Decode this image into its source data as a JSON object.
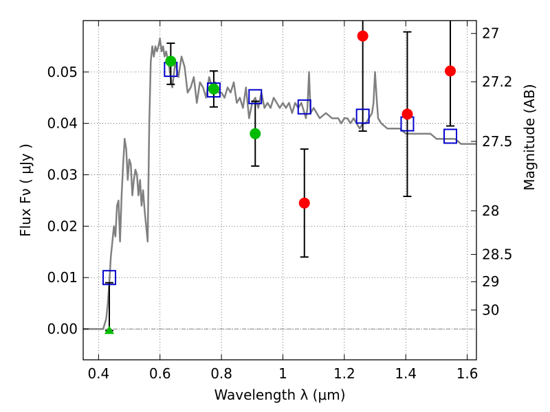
{
  "chart_data": {
    "type": "scatter",
    "xlabel": "Wavelength  λ (μm)",
    "ylabel": "Flux  Fν  ( μJy )",
    "y2label": "Magnitude (AB)",
    "xlim": [
      0.35,
      1.63
    ],
    "ylim": [
      -0.006,
      0.06
    ],
    "x_ticks": [
      0.4,
      0.6,
      0.8,
      1.0,
      1.2,
      1.4,
      1.6
    ],
    "x_tick_labels": [
      "0.4",
      "0.6",
      "0.8",
      "1",
      "1.2",
      "1.4",
      "1.6"
    ],
    "y_ticks": [
      0.0,
      0.01,
      0.02,
      0.03,
      0.04,
      0.05
    ],
    "y_tick_labels": [
      "0.00",
      "0.01",
      "0.02",
      "0.03",
      "0.04",
      "0.05"
    ],
    "mag_ticks": [
      {
        "label": "27",
        "flux": 0.0575
      },
      {
        "label": "27.2",
        "flux": 0.0481
      },
      {
        "label": "27.5",
        "flux": 0.0365
      },
      {
        "label": "28",
        "flux": 0.023
      },
      {
        "label": "28.5",
        "flux": 0.0145
      },
      {
        "label": "29",
        "flux": 0.0092
      },
      {
        "label": "30",
        "flux": 0.0037
      }
    ],
    "grid": true,
    "zero_line": 0.0,
    "colors": {
      "model": "#808080",
      "model_photometry": "#0000cc",
      "detection_green": "#00bb00",
      "detection_red": "#ff0000",
      "errorbar": "#000000"
    },
    "model_spectrum": {
      "x": [
        0.35,
        0.415,
        0.42,
        0.425,
        0.43,
        0.435,
        0.44,
        0.445,
        0.45,
        0.455,
        0.46,
        0.465,
        0.47,
        0.475,
        0.48,
        0.485,
        0.49,
        0.495,
        0.5,
        0.505,
        0.51,
        0.515,
        0.52,
        0.525,
        0.53,
        0.535,
        0.54,
        0.545,
        0.55,
        0.555,
        0.56,
        0.565,
        0.57,
        0.575,
        0.58,
        0.585,
        0.59,
        0.595,
        0.6,
        0.605,
        0.61,
        0.615,
        0.62,
        0.63,
        0.64,
        0.65,
        0.66,
        0.67,
        0.68,
        0.69,
        0.7,
        0.71,
        0.72,
        0.73,
        0.74,
        0.75,
        0.76,
        0.77,
        0.78,
        0.79,
        0.8,
        0.81,
        0.82,
        0.83,
        0.84,
        0.85,
        0.86,
        0.87,
        0.88,
        0.89,
        0.9,
        0.91,
        0.92,
        0.93,
        0.94,
        0.95,
        0.96,
        0.97,
        0.98,
        0.99,
        1.0,
        1.01,
        1.02,
        1.03,
        1.04,
        1.05,
        1.06,
        1.07,
        1.075,
        1.08,
        1.085,
        1.09,
        1.1,
        1.12,
        1.14,
        1.16,
        1.18,
        1.19,
        1.2,
        1.21,
        1.22,
        1.23,
        1.24,
        1.25,
        1.26,
        1.27,
        1.28,
        1.29,
        1.295,
        1.3,
        1.305,
        1.31,
        1.32,
        1.34,
        1.36,
        1.38,
        1.4,
        1.42,
        1.44,
        1.46,
        1.48,
        1.5,
        1.52,
        1.54,
        1.56,
        1.58,
        1.6,
        1.63
      ],
      "y": [
        0.0,
        0.0,
        0.001,
        0.002,
        0.005,
        0.009,
        0.014,
        0.017,
        0.02,
        0.018,
        0.024,
        0.025,
        0.017,
        0.026,
        0.032,
        0.037,
        0.035,
        0.029,
        0.033,
        0.032,
        0.026,
        0.029,
        0.031,
        0.03,
        0.026,
        0.029,
        0.024,
        0.027,
        0.023,
        0.02,
        0.017,
        0.04,
        0.052,
        0.055,
        0.053,
        0.055,
        0.054,
        0.055,
        0.0565,
        0.054,
        0.055,
        0.053,
        0.054,
        0.051,
        0.047,
        0.052,
        0.049,
        0.053,
        0.051,
        0.046,
        0.047,
        0.049,
        0.044,
        0.048,
        0.047,
        0.045,
        0.049,
        0.047,
        0.048,
        0.046,
        0.046,
        0.045,
        0.047,
        0.046,
        0.048,
        0.044,
        0.045,
        0.043,
        0.047,
        0.041,
        0.044,
        0.045,
        0.043,
        0.046,
        0.043,
        0.044,
        0.043,
        0.045,
        0.044,
        0.043,
        0.044,
        0.043,
        0.044,
        0.042,
        0.044,
        0.043,
        0.044,
        0.042,
        0.041,
        0.043,
        0.05,
        0.042,
        0.043,
        0.041,
        0.042,
        0.041,
        0.041,
        0.04,
        0.041,
        0.041,
        0.04,
        0.041,
        0.04,
        0.039,
        0.04,
        0.04,
        0.041,
        0.042,
        0.044,
        0.05,
        0.045,
        0.041,
        0.04,
        0.039,
        0.039,
        0.039,
        0.038,
        0.038,
        0.038,
        0.038,
        0.038,
        0.037,
        0.037,
        0.037,
        0.037,
        0.036,
        0.036,
        0.036
      ]
    },
    "model_photometry": [
      {
        "x": 0.435,
        "y": 0.01
      },
      {
        "x": 0.635,
        "y": 0.0505
      },
      {
        "x": 0.775,
        "y": 0.0465
      },
      {
        "x": 0.91,
        "y": 0.0452
      },
      {
        "x": 1.07,
        "y": 0.0432
      },
      {
        "x": 1.26,
        "y": 0.0414
      },
      {
        "x": 1.405,
        "y": 0.0399
      },
      {
        "x": 1.545,
        "y": 0.0375
      }
    ],
    "detections_green": [
      {
        "x": 0.635,
        "y": 0.0521,
        "yerr_low": 0.0045,
        "yerr_high": 0.0035
      },
      {
        "x": 0.775,
        "y": 0.0467,
        "yerr_low": 0.0035,
        "yerr_high": 0.0035
      },
      {
        "x": 0.91,
        "y": 0.038,
        "yerr_low": 0.0063,
        "yerr_high": 0.0063
      }
    ],
    "upper_limit_green": {
      "x": 0.435,
      "y": -0.0003,
      "yerr_high": 0.0093
    },
    "detections_red": [
      {
        "x": 1.07,
        "y": 0.0245,
        "yerr_low": 0.0105,
        "yerr_high": 0.0105
      },
      {
        "x": 1.26,
        "y": 0.057,
        "yerr_low": 0.0185,
        "yerr_high": 0.0185
      },
      {
        "x": 1.405,
        "y": 0.0418,
        "yerr_low": 0.016,
        "yerr_high": 0.016
      },
      {
        "x": 1.545,
        "y": 0.0502,
        "yerr_low": 0.0107,
        "yerr_high": 0.0107
      }
    ]
  }
}
